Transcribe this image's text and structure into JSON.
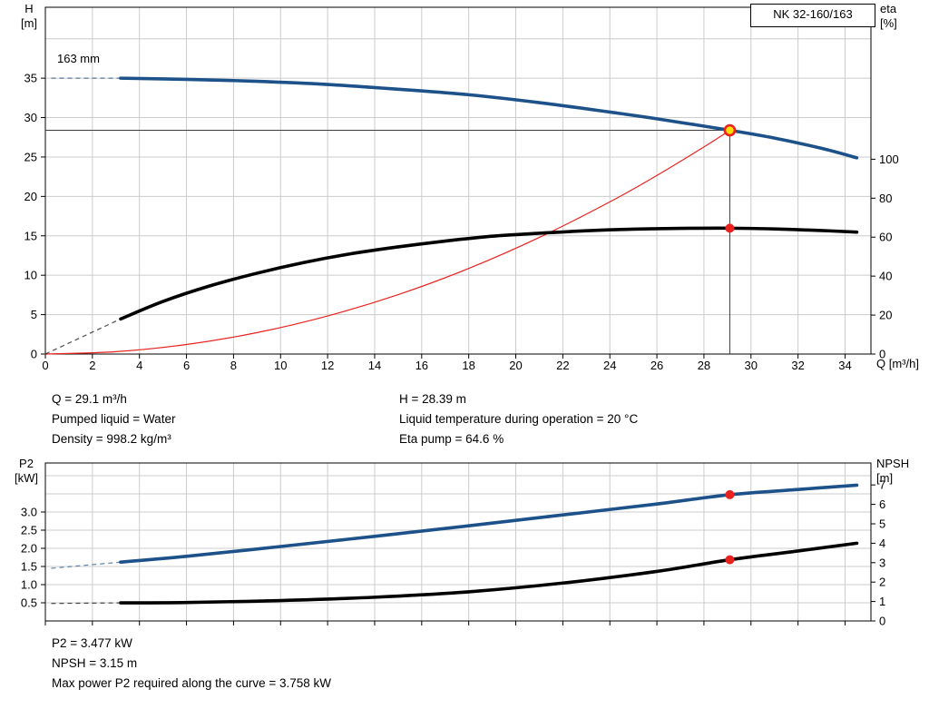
{
  "model_box": {
    "label": "NK 32-160/163"
  },
  "operating_point_info": {
    "q": "Q = 29.1 m³/h",
    "pumped_liquid": "Pumped liquid = Water",
    "density": "Density = 998.2 kg/m³",
    "h": "H = 28.39 m",
    "liquid_temperature": "Liquid temperature during operation = 20 °C",
    "eta_pump": "Eta pump = 64.6 %"
  },
  "footer_info": {
    "p2": "P2 = 3.477 kW",
    "npsh": "NPSH = 3.15 m",
    "max_power": "Max power P2 required along the curve = 3.758 kW"
  },
  "colors": {
    "curve_blue": "#1d5189",
    "curve_black": "#000000",
    "curve_red": "#e8231f",
    "marker_yellow": "#ffe000",
    "grid": "#cccccc",
    "crosshair": "#3d3d3d"
  },
  "chart_data": [
    {
      "type": "line",
      "name": "qh-eta-chart",
      "title": "NK 32-160/163",
      "impeller_diameter_label": "163 mm",
      "x_label": "Q [m³/h]",
      "y_left_label": [
        "H",
        "[m]"
      ],
      "y_right_label": [
        "eta",
        "[%]"
      ],
      "x_max": 35.1,
      "y_left_max": 44,
      "y_right_max": 178,
      "show_x_labels": true,
      "x_ticks": [
        "0",
        "2",
        "4",
        "6",
        "8",
        "10",
        "12",
        "14",
        "16",
        "18",
        "20",
        "22",
        "24",
        "26",
        "28",
        "30",
        "32",
        "34"
      ],
      "y_left_ticks": [
        "0",
        "5",
        "10",
        "15",
        "20",
        "25",
        "30",
        "35"
      ],
      "y_right_ticks": [
        "0",
        "20",
        "40",
        "60",
        "80",
        "100"
      ],
      "y_grid": [
        5,
        10,
        15,
        20,
        25,
        30,
        35,
        40
      ],
      "crosshair": {
        "x": 29.1,
        "y": 28.39
      },
      "series": [
        {
          "name": "duty-system-curve",
          "axis": "left",
          "color": "#e8231f",
          "width": 1.2,
          "x": [
            0,
            3,
            6,
            9,
            12,
            15,
            18,
            21,
            24,
            26,
            28,
            29.1
          ],
          "y": [
            0,
            0.3,
            1.21,
            2.72,
            4.83,
            7.54,
            10.86,
            14.79,
            19.31,
            22.66,
            26.28,
            28.39
          ]
        },
        {
          "name": "head-curve",
          "axis": "left",
          "color": "#1d5189",
          "width": 3.6,
          "dash_from": [
            0.25,
            35
          ],
          "x": [
            3.2,
            6,
            9,
            12,
            15,
            18,
            21,
            24,
            26,
            29.1,
            31,
            33,
            34.5
          ],
          "y": [
            35,
            34.85,
            34.6,
            34.2,
            33.6,
            32.9,
            31.9,
            30.7,
            29.85,
            28.39,
            27.4,
            26.1,
            24.9
          ]
        },
        {
          "name": "eta-curve",
          "axis": "right",
          "color": "#000000",
          "width": 3.6,
          "dash_from": [
            0,
            0
          ],
          "x": [
            3.2,
            5,
            7,
            9,
            11,
            13,
            15,
            17,
            19,
            21,
            23,
            25,
            27,
            29.1,
            31,
            33,
            34.5
          ],
          "y": [
            18,
            27,
            35,
            41.5,
            47,
            51.5,
            55,
            58,
            60.5,
            62,
            63.3,
            64.1,
            64.5,
            64.6,
            64.2,
            63.4,
            62.6
          ]
        }
      ],
      "markers": [
        {
          "name": "eta-operating-point",
          "x": 29.1,
          "y": 64.6,
          "axis": "right",
          "r": 5,
          "fill": "#e8231f"
        },
        {
          "name": "duty-point-marker",
          "x": 29.1,
          "y": 28.39,
          "axis": "left",
          "r": 5.5,
          "fill": "#ffe000",
          "stroke": "#e8231f",
          "stroke_width": 2.6
        }
      ]
    },
    {
      "type": "line",
      "name": "p2-npsh-chart",
      "x_label": "",
      "y_left_label": [
        "P2",
        "[kW]"
      ],
      "y_right_label": [
        "NPSH",
        "[m]"
      ],
      "x_max": 35.1,
      "y_left_max": 4.35,
      "y_right_max": 8.13,
      "show_x_labels": false,
      "x_ticks": [
        "0",
        "2",
        "4",
        "6",
        "8",
        "10",
        "12",
        "14",
        "16",
        "18",
        "20",
        "22",
        "24",
        "26",
        "28",
        "30",
        "32",
        "34"
      ],
      "y_left_ticks": [
        "0.5",
        "1.0",
        "1.5",
        "2.0",
        "2.5",
        "3.0"
      ],
      "y_right_ticks": [
        "0",
        "1",
        "2",
        "3",
        "4",
        "5",
        "6",
        "7"
      ],
      "y_grid": [
        0.5,
        1,
        1.5,
        2,
        2.5,
        3,
        3.5,
        4
      ],
      "series": [
        {
          "name": "p2-curve",
          "axis": "left",
          "color": "#1d5189",
          "width": 3.6,
          "dash_from": [
            0.25,
            1.45
          ],
          "x": [
            3.2,
            6,
            10,
            14,
            18,
            22,
            26,
            29.1,
            32,
            34.5
          ],
          "y": [
            1.62,
            1.78,
            2.05,
            2.33,
            2.62,
            2.92,
            3.22,
            3.477,
            3.62,
            3.74
          ]
        },
        {
          "name": "npsh-curve",
          "axis": "right",
          "color": "#000000",
          "width": 3.6,
          "dash_from": [
            0.25,
            0.9
          ],
          "x": [
            3.2,
            6,
            10,
            14,
            18,
            22,
            26,
            29.1,
            32,
            34.5
          ],
          "y": [
            0.93,
            0.95,
            1.05,
            1.22,
            1.5,
            1.95,
            2.55,
            3.15,
            3.6,
            4.0
          ]
        }
      ],
      "markers": [
        {
          "name": "p2-operating-point",
          "x": 29.1,
          "y": 3.477,
          "axis": "left",
          "r": 5,
          "fill": "#e8231f"
        },
        {
          "name": "npsh-operating-point",
          "x": 29.1,
          "y": 3.15,
          "axis": "right",
          "r": 5,
          "fill": "#e8231f"
        }
      ]
    }
  ]
}
